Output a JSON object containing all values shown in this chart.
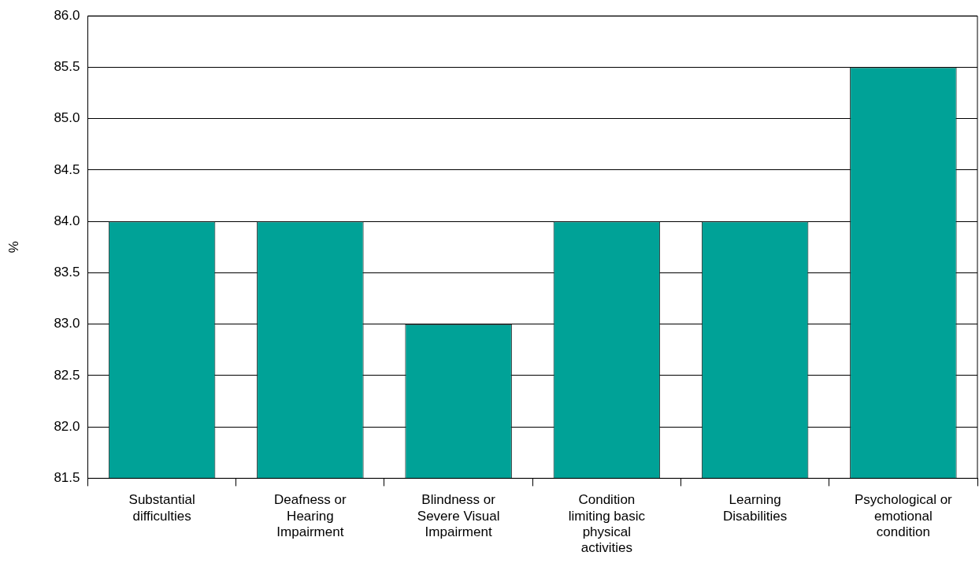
{
  "chart_data": {
    "type": "bar",
    "ylabel": "%",
    "categories": [
      "Substantial difficulties",
      "Deafness or Hearing Impairment",
      "Blindness or Severe Visual Impairment",
      "Condition limiting basic physical activities",
      "Learning Disabilities",
      "Psychological or emotional condition"
    ],
    "values": [
      84,
      84,
      83,
      84,
      84,
      85.5
    ],
    "color": "#00a297",
    "ylim": [
      81.5,
      86
    ],
    "yticks": [
      {
        "value": 81.5,
        "label": "81.5"
      },
      {
        "value": 82,
        "label": "82.0"
      },
      {
        "value": 82.5,
        "label": "82.5"
      },
      {
        "value": 83,
        "label": "83.0"
      },
      {
        "value": 83.5,
        "label": "83.5"
      },
      {
        "value": 84,
        "label": "84.0"
      },
      {
        "value": 84.5,
        "label": "84.5"
      },
      {
        "value": 85,
        "label": "85.0"
      },
      {
        "value": 85.5,
        "label": "85.5"
      },
      {
        "value": 86,
        "label": "86.0"
      }
    ],
    "grid": "y",
    "legend": false
  }
}
